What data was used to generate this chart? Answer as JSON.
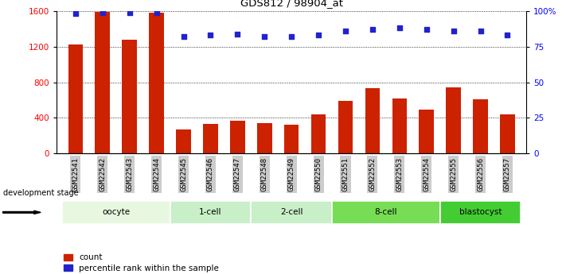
{
  "title": "GDS812 / 98904_at",
  "samples": [
    "GSM22541",
    "GSM22542",
    "GSM22543",
    "GSM22544",
    "GSM22545",
    "GSM22546",
    "GSM22547",
    "GSM22548",
    "GSM22549",
    "GSM22550",
    "GSM22551",
    "GSM22552",
    "GSM22553",
    "GSM22554",
    "GSM22555",
    "GSM22556",
    "GSM22557"
  ],
  "counts": [
    1220,
    1590,
    1280,
    1580,
    270,
    330,
    370,
    340,
    320,
    440,
    590,
    730,
    620,
    490,
    740,
    610,
    440
  ],
  "percentile_ranks": [
    98,
    99,
    99,
    99,
    82,
    83,
    84,
    82,
    82,
    83,
    86,
    87,
    88,
    87,
    86,
    86,
    83
  ],
  "bar_color": "#cc2200",
  "dot_color": "#2222cc",
  "left_yticks": [
    0,
    400,
    800,
    1200,
    1600
  ],
  "right_yticks": [
    0,
    25,
    50,
    75,
    100
  ],
  "right_yticklabels": [
    "0",
    "25",
    "50",
    "75",
    "100%"
  ],
  "stages": [
    {
      "label": "oocyte",
      "start": 0,
      "end": 4,
      "color": "#e8f8e0"
    },
    {
      "label": "1-cell",
      "start": 4,
      "end": 7,
      "color": "#c8efc8"
    },
    {
      "label": "2-cell",
      "start": 7,
      "end": 10,
      "color": "#c8efc8"
    },
    {
      "label": "8-cell",
      "start": 10,
      "end": 14,
      "color": "#77dd55"
    },
    {
      "label": "blastocyst",
      "start": 14,
      "end": 17,
      "color": "#44cc33"
    }
  ],
  "xticklabel_bg": "#cccccc",
  "dev_stage_label": "development stage",
  "legend_count_label": "count",
  "legend_pct_label": "percentile rank within the sample",
  "ylim_left": [
    0,
    1600
  ],
  "ylim_right": [
    0,
    100
  ]
}
